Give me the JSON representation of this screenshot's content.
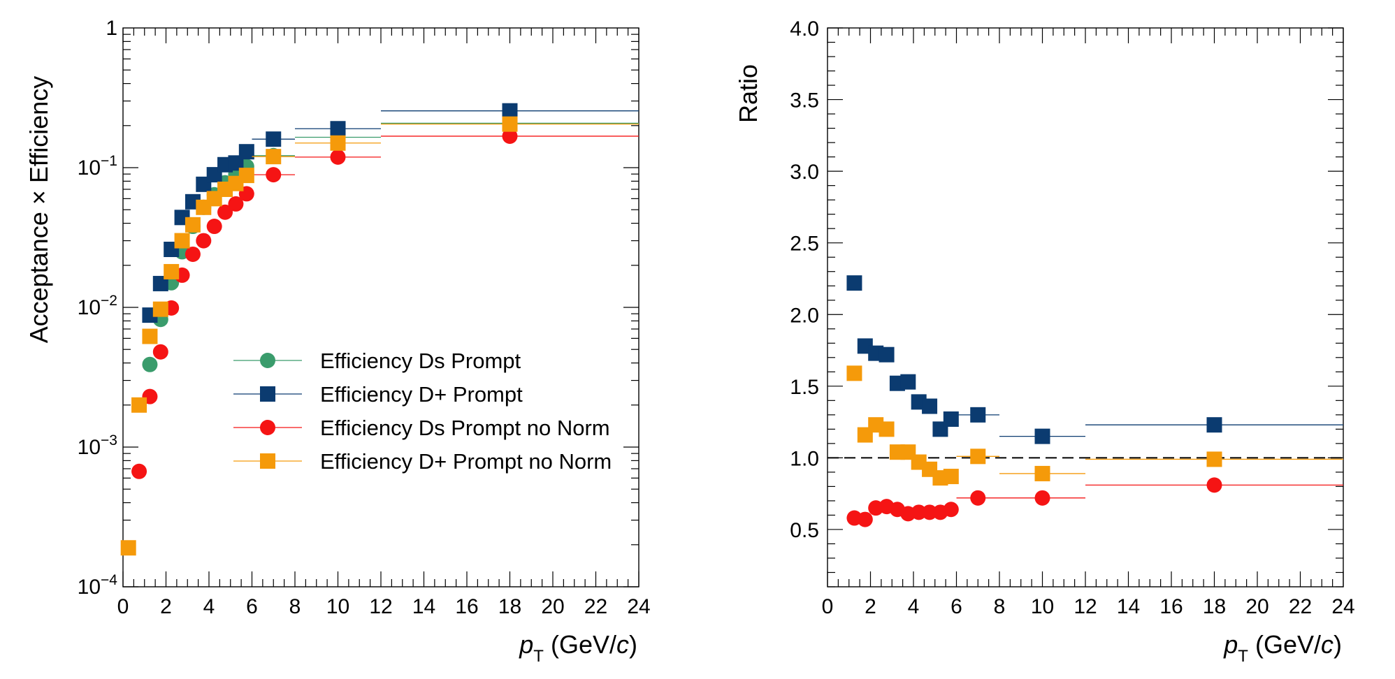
{
  "chart_data": [
    {
      "type": "scatter",
      "xlabel": "p_T (GeV/c)",
      "ylabel": "Acceptance × Efficiency",
      "xlim": [
        0,
        24
      ],
      "ylim": [
        0.0001,
        1
      ],
      "yscale": "log",
      "x_ticks": [
        "0",
        "2",
        "4",
        "6",
        "8",
        "10",
        "12",
        "14",
        "16",
        "18",
        "20",
        "22",
        "24"
      ],
      "y_ticks": [
        {
          "base": "10",
          "exp": "−4"
        },
        {
          "base": "10",
          "exp": "−3"
        },
        {
          "base": "10",
          "exp": "−2"
        },
        {
          "base": "10",
          "exp": "−1"
        },
        {
          "base": "1",
          "exp": ""
        }
      ],
      "grid": false,
      "legend_position": "center-right",
      "bins": [
        [
          0,
          0.5
        ],
        [
          0.5,
          1
        ],
        [
          1,
          1.5
        ],
        [
          1.5,
          2
        ],
        [
          2,
          2.5
        ],
        [
          2.5,
          3
        ],
        [
          3,
          3.5
        ],
        [
          3.5,
          4
        ],
        [
          4,
          4.5
        ],
        [
          4.5,
          5
        ],
        [
          5,
          5.5
        ],
        [
          5.5,
          6
        ],
        [
          6,
          8
        ],
        [
          8,
          12
        ],
        [
          12,
          24
        ]
      ],
      "series": [
        {
          "name": "Efficiency Ds Prompt",
          "marker": "circle",
          "color": "#3a9c6c",
          "values": [
            null,
            null,
            0.0039,
            0.0082,
            0.015,
            0.025,
            0.038,
            0.052,
            0.064,
            0.078,
            0.09,
            0.102,
            0.122,
            0.165,
            0.208
          ]
        },
        {
          "name": "Efficiency D+ Prompt",
          "marker": "square",
          "color": "#0b3b70",
          "values": [
            null,
            null,
            0.0088,
            0.0148,
            0.026,
            0.044,
            0.057,
            0.076,
            0.089,
            0.105,
            0.108,
            0.13,
            0.16,
            0.19,
            0.255
          ]
        },
        {
          "name": "Efficiency Ds Prompt no Norm",
          "marker": "circle",
          "color": "#f51414",
          "values": [
            null,
            0.00067,
            0.0023,
            0.0048,
            0.0099,
            0.017,
            0.024,
            0.03,
            0.038,
            0.048,
            0.055,
            0.065,
            0.089,
            0.119,
            0.168
          ]
        },
        {
          "name": "Efficiency D+ Prompt no Norm",
          "marker": "square",
          "color": "#f59a0a",
          "values": [
            0.00019,
            0.002,
            0.0062,
            0.0097,
            0.018,
            0.03,
            0.039,
            0.052,
            0.06,
            0.07,
            0.077,
            0.088,
            0.12,
            0.15,
            0.205
          ]
        }
      ]
    },
    {
      "type": "scatter",
      "xlabel": "p_T (GeV/c)",
      "ylabel": "Ratio",
      "xlim": [
        0,
        24
      ],
      "ylim": [
        0.1,
        4.0
      ],
      "x_ticks": [
        "0",
        "2",
        "4",
        "6",
        "8",
        "10",
        "12",
        "14",
        "16",
        "18",
        "20",
        "22",
        "24"
      ],
      "y_ticks": [
        "0.5",
        "1.0",
        "1.5",
        "2.0",
        "2.5",
        "3.0",
        "3.5",
        "4.0"
      ],
      "reference_line": 1.0,
      "grid": false,
      "bins": [
        [
          1,
          1.5
        ],
        [
          1.5,
          2
        ],
        [
          2,
          2.5
        ],
        [
          2.5,
          3
        ],
        [
          3,
          3.5
        ],
        [
          3.5,
          4
        ],
        [
          4,
          4.5
        ],
        [
          4.5,
          5
        ],
        [
          5,
          5.5
        ],
        [
          5.5,
          6
        ],
        [
          6,
          8
        ],
        [
          8,
          12
        ],
        [
          12,
          24
        ]
      ],
      "series": [
        {
          "name": "Efficiency D+ Prompt",
          "marker": "square",
          "color": "#0b3b70",
          "values": [
            2.22,
            1.78,
            1.73,
            1.72,
            1.52,
            1.53,
            1.39,
            1.36,
            1.2,
            1.27,
            1.3,
            1.15,
            1.23
          ]
        },
        {
          "name": "Efficiency D+ Prompt no Norm",
          "marker": "square",
          "color": "#f59a0a",
          "values": [
            1.59,
            1.16,
            1.23,
            1.2,
            1.04,
            1.04,
            0.97,
            0.92,
            0.86,
            0.87,
            1.01,
            0.89,
            0.99
          ]
        },
        {
          "name": "Efficiency Ds Prompt no Norm",
          "marker": "circle",
          "color": "#f51414",
          "values": [
            0.58,
            0.57,
            0.65,
            0.66,
            0.64,
            0.61,
            0.62,
            0.62,
            0.62,
            0.64,
            0.72,
            0.72,
            0.81
          ]
        }
      ]
    }
  ]
}
